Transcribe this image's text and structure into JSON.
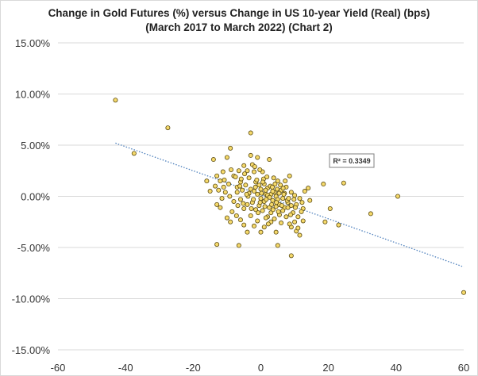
{
  "chart_data": {
    "type": "scatter",
    "title_line1": "Change in Gold Futures (%) versus Change in US 10-year Yield (Real) (bps)",
    "title_line2": "(March 2017 to March 2022) (Chart 2)",
    "xlabel": "",
    "ylabel": "",
    "xlim": [
      -60,
      60
    ],
    "ylim": [
      -15,
      15
    ],
    "xticks": [
      "-60",
      "-40",
      "-20",
      "0",
      "20",
      "40",
      "60"
    ],
    "yticks": [
      "15.00%",
      "10.00%",
      "5.00%",
      "0.00%",
      "-5.00%",
      "-10.00%",
      "-15.00%"
    ],
    "grid": "horizontal",
    "r_squared_label": "R² = 0.3349",
    "trendline": {
      "x": [
        -43,
        60
      ],
      "y": [
        5.2,
        -6.9
      ]
    },
    "colors": {
      "marker_fill": "#f5d96b",
      "marker_edge": "#5a4a10",
      "trendline": "#4f81bd",
      "grid": "#d9d9d9"
    },
    "series": [
      {
        "points": [
          [
            -43,
            9.4
          ],
          [
            -37.5,
            4.2
          ],
          [
            -27.5,
            6.7
          ],
          [
            -13,
            -4.7
          ],
          [
            -6.5,
            -4.8
          ],
          [
            -3,
            6.2
          ],
          [
            40.5,
            0.0
          ],
          [
            60,
            -9.4
          ],
          [
            24.5,
            1.3
          ],
          [
            32.5,
            -1.7
          ],
          [
            23,
            -2.8
          ],
          [
            19,
            -2.5
          ],
          [
            18.5,
            1.2
          ],
          [
            20.5,
            -1.2
          ],
          [
            14,
            0.8
          ],
          [
            14.5,
            -0.4
          ],
          [
            12.5,
            -1.2
          ],
          [
            10,
            -2.5
          ],
          [
            9,
            -3.0
          ],
          [
            10.5,
            -3.4
          ],
          [
            11.5,
            -3.8
          ],
          [
            11,
            -3.1
          ],
          [
            9,
            -5.8
          ],
          [
            5,
            -4.8
          ],
          [
            4.5,
            -3.5
          ],
          [
            3,
            -2.5
          ],
          [
            2,
            -2.0
          ],
          [
            1,
            -3.0
          ],
          [
            0,
            -3.5
          ],
          [
            -1,
            -2.4
          ],
          [
            -2,
            -2.9
          ],
          [
            -4,
            -3.5
          ],
          [
            -5,
            -2.8
          ],
          [
            -6,
            -2.3
          ],
          [
            -9,
            -2.5
          ],
          [
            -10,
            -2.1
          ],
          [
            -12,
            -1.1
          ],
          [
            -13,
            -0.8
          ],
          [
            -16,
            1.5
          ],
          [
            -15,
            0.5
          ],
          [
            -14,
            3.6
          ],
          [
            -13,
            2.0
          ],
          [
            -12,
            1.5
          ],
          [
            -11,
            0.9
          ],
          [
            -10,
            3.8
          ],
          [
            -9,
            4.7
          ],
          [
            -8,
            2.0
          ],
          [
            -7,
            0.4
          ],
          [
            -6,
            1.4
          ],
          [
            -5,
            3.0
          ],
          [
            -4,
            2.5
          ],
          [
            -3.5,
            1.8
          ],
          [
            -3,
            0.7
          ],
          [
            -2.5,
            3.1
          ],
          [
            -2,
            2.4
          ],
          [
            -1.5,
            1.4
          ],
          [
            -1,
            3.8
          ],
          [
            -0.5,
            1.1
          ],
          [
            0,
            0.7
          ],
          [
            0.5,
            2.4
          ],
          [
            1,
            1.2
          ],
          [
            1.5,
            0.2
          ],
          [
            2,
            0.8
          ],
          [
            2.5,
            3.6
          ],
          [
            3,
            0.2
          ],
          [
            3.5,
            -0.4
          ],
          [
            4,
            0.4
          ],
          [
            4.5,
            0.0
          ],
          [
            5,
            1.5
          ],
          [
            5.5,
            -0.8
          ],
          [
            6,
            0.6
          ],
          [
            6.5,
            -0.2
          ],
          [
            7,
            -1.1
          ],
          [
            7.5,
            0.9
          ],
          [
            8,
            -0.6
          ],
          [
            8.5,
            2.0
          ],
          [
            9,
            0.4
          ],
          [
            9.5,
            -1.6
          ],
          [
            10,
            0.1
          ],
          [
            10.5,
            -0.8
          ],
          [
            11,
            -2.0
          ],
          [
            11.5,
            -0.2
          ],
          [
            12,
            -1.5
          ],
          [
            12.5,
            -2.4
          ],
          [
            13,
            0.5
          ],
          [
            -8,
            -0.5
          ],
          [
            -7,
            0.9
          ],
          [
            -6,
            -0.3
          ],
          [
            -5.5,
            0.6
          ],
          [
            -5,
            -1.2
          ],
          [
            -4.5,
            1.1
          ],
          [
            -4,
            -0.8
          ],
          [
            -3.5,
            0.3
          ],
          [
            -3,
            -1.9
          ],
          [
            -2.5,
            -0.6
          ],
          [
            -2,
            0.5
          ],
          [
            -1.5,
            -1.3
          ],
          [
            -1,
            0.2
          ],
          [
            -0.5,
            -0.9
          ],
          [
            0,
            -0.2
          ],
          [
            0.5,
            -1.4
          ],
          [
            1,
            -0.5
          ],
          [
            1.5,
            -2.1
          ],
          [
            2,
            0.1
          ],
          [
            2.5,
            -1.1
          ],
          [
            3,
            -1.6
          ],
          [
            3.5,
            0.5
          ],
          [
            4,
            -2.2
          ],
          [
            4.5,
            -1.0
          ],
          [
            5,
            -0.3
          ],
          [
            5.5,
            -1.8
          ],
          [
            6,
            -2.6
          ],
          [
            6.5,
            -1.4
          ],
          [
            7,
            0.3
          ],
          [
            7.5,
            -2.0
          ],
          [
            8,
            -1.1
          ],
          [
            8.5,
            -2.7
          ],
          [
            9,
            -0.9
          ],
          [
            -9.5,
            1.2
          ],
          [
            -10.5,
            0.4
          ],
          [
            -11.5,
            -0.2
          ],
          [
            -8.5,
            -1.5
          ],
          [
            -7.5,
            1.9
          ],
          [
            -6.5,
            2.5
          ],
          [
            -3,
            4.0
          ],
          [
            -1.8,
            2.9
          ],
          [
            -0.3,
            2.6
          ],
          [
            0.8,
            1.7
          ],
          [
            1.8,
            1.9
          ],
          [
            2.8,
            1.0
          ],
          [
            3.8,
            1.8
          ],
          [
            4.8,
            0.7
          ],
          [
            5.8,
            1.1
          ],
          [
            6.8,
            0.2
          ],
          [
            7.8,
            -0.4
          ],
          [
            8.8,
            -1.8
          ],
          [
            9.8,
            -0.3
          ],
          [
            -7.2,
            -1.9
          ],
          [
            -5.2,
            -0.7
          ],
          [
            -2.2,
            -0.3
          ],
          [
            -1.2,
            1.6
          ],
          [
            0.2,
            0.3
          ],
          [
            1.2,
            -1.0
          ],
          [
            2.2,
            -2.7
          ],
          [
            3.2,
            -0.8
          ],
          [
            4.2,
            1.2
          ],
          [
            5.2,
            -1.5
          ],
          [
            6.2,
            -0.9
          ],
          [
            7.2,
            1.5
          ],
          [
            -12.5,
            0.6
          ],
          [
            -9.2,
            0.0
          ],
          [
            -6.2,
            1.0
          ],
          [
            -3.8,
            0.0
          ],
          [
            -0.8,
            -1.6
          ],
          [
            1.6,
            -0.3
          ],
          [
            3.6,
            -1.3
          ],
          [
            -4.8,
            2.2
          ],
          [
            -8.8,
            2.6
          ],
          [
            -10.8,
            1.6
          ],
          [
            -2.8,
            -1.2
          ],
          [
            0.6,
            1.4
          ],
          [
            2.6,
            -0.1
          ],
          [
            4.6,
            -0.6
          ],
          [
            6.6,
            0.8
          ],
          [
            8.2,
            -0.2
          ],
          [
            10.2,
            -1.1
          ],
          [
            12.2,
            -0.6
          ],
          [
            -1.6,
            0.9
          ],
          [
            -0.2,
            -0.6
          ],
          [
            1.4,
            0.6
          ],
          [
            3.4,
            0.9
          ],
          [
            5.4,
            0.3
          ],
          [
            -6.8,
            -0.9
          ],
          [
            -4.2,
            0.2
          ],
          [
            -11.2,
            2.4
          ],
          [
            -13.5,
            1.0
          ],
          [
            -5.8,
            1.7
          ]
        ]
      }
    ]
  }
}
